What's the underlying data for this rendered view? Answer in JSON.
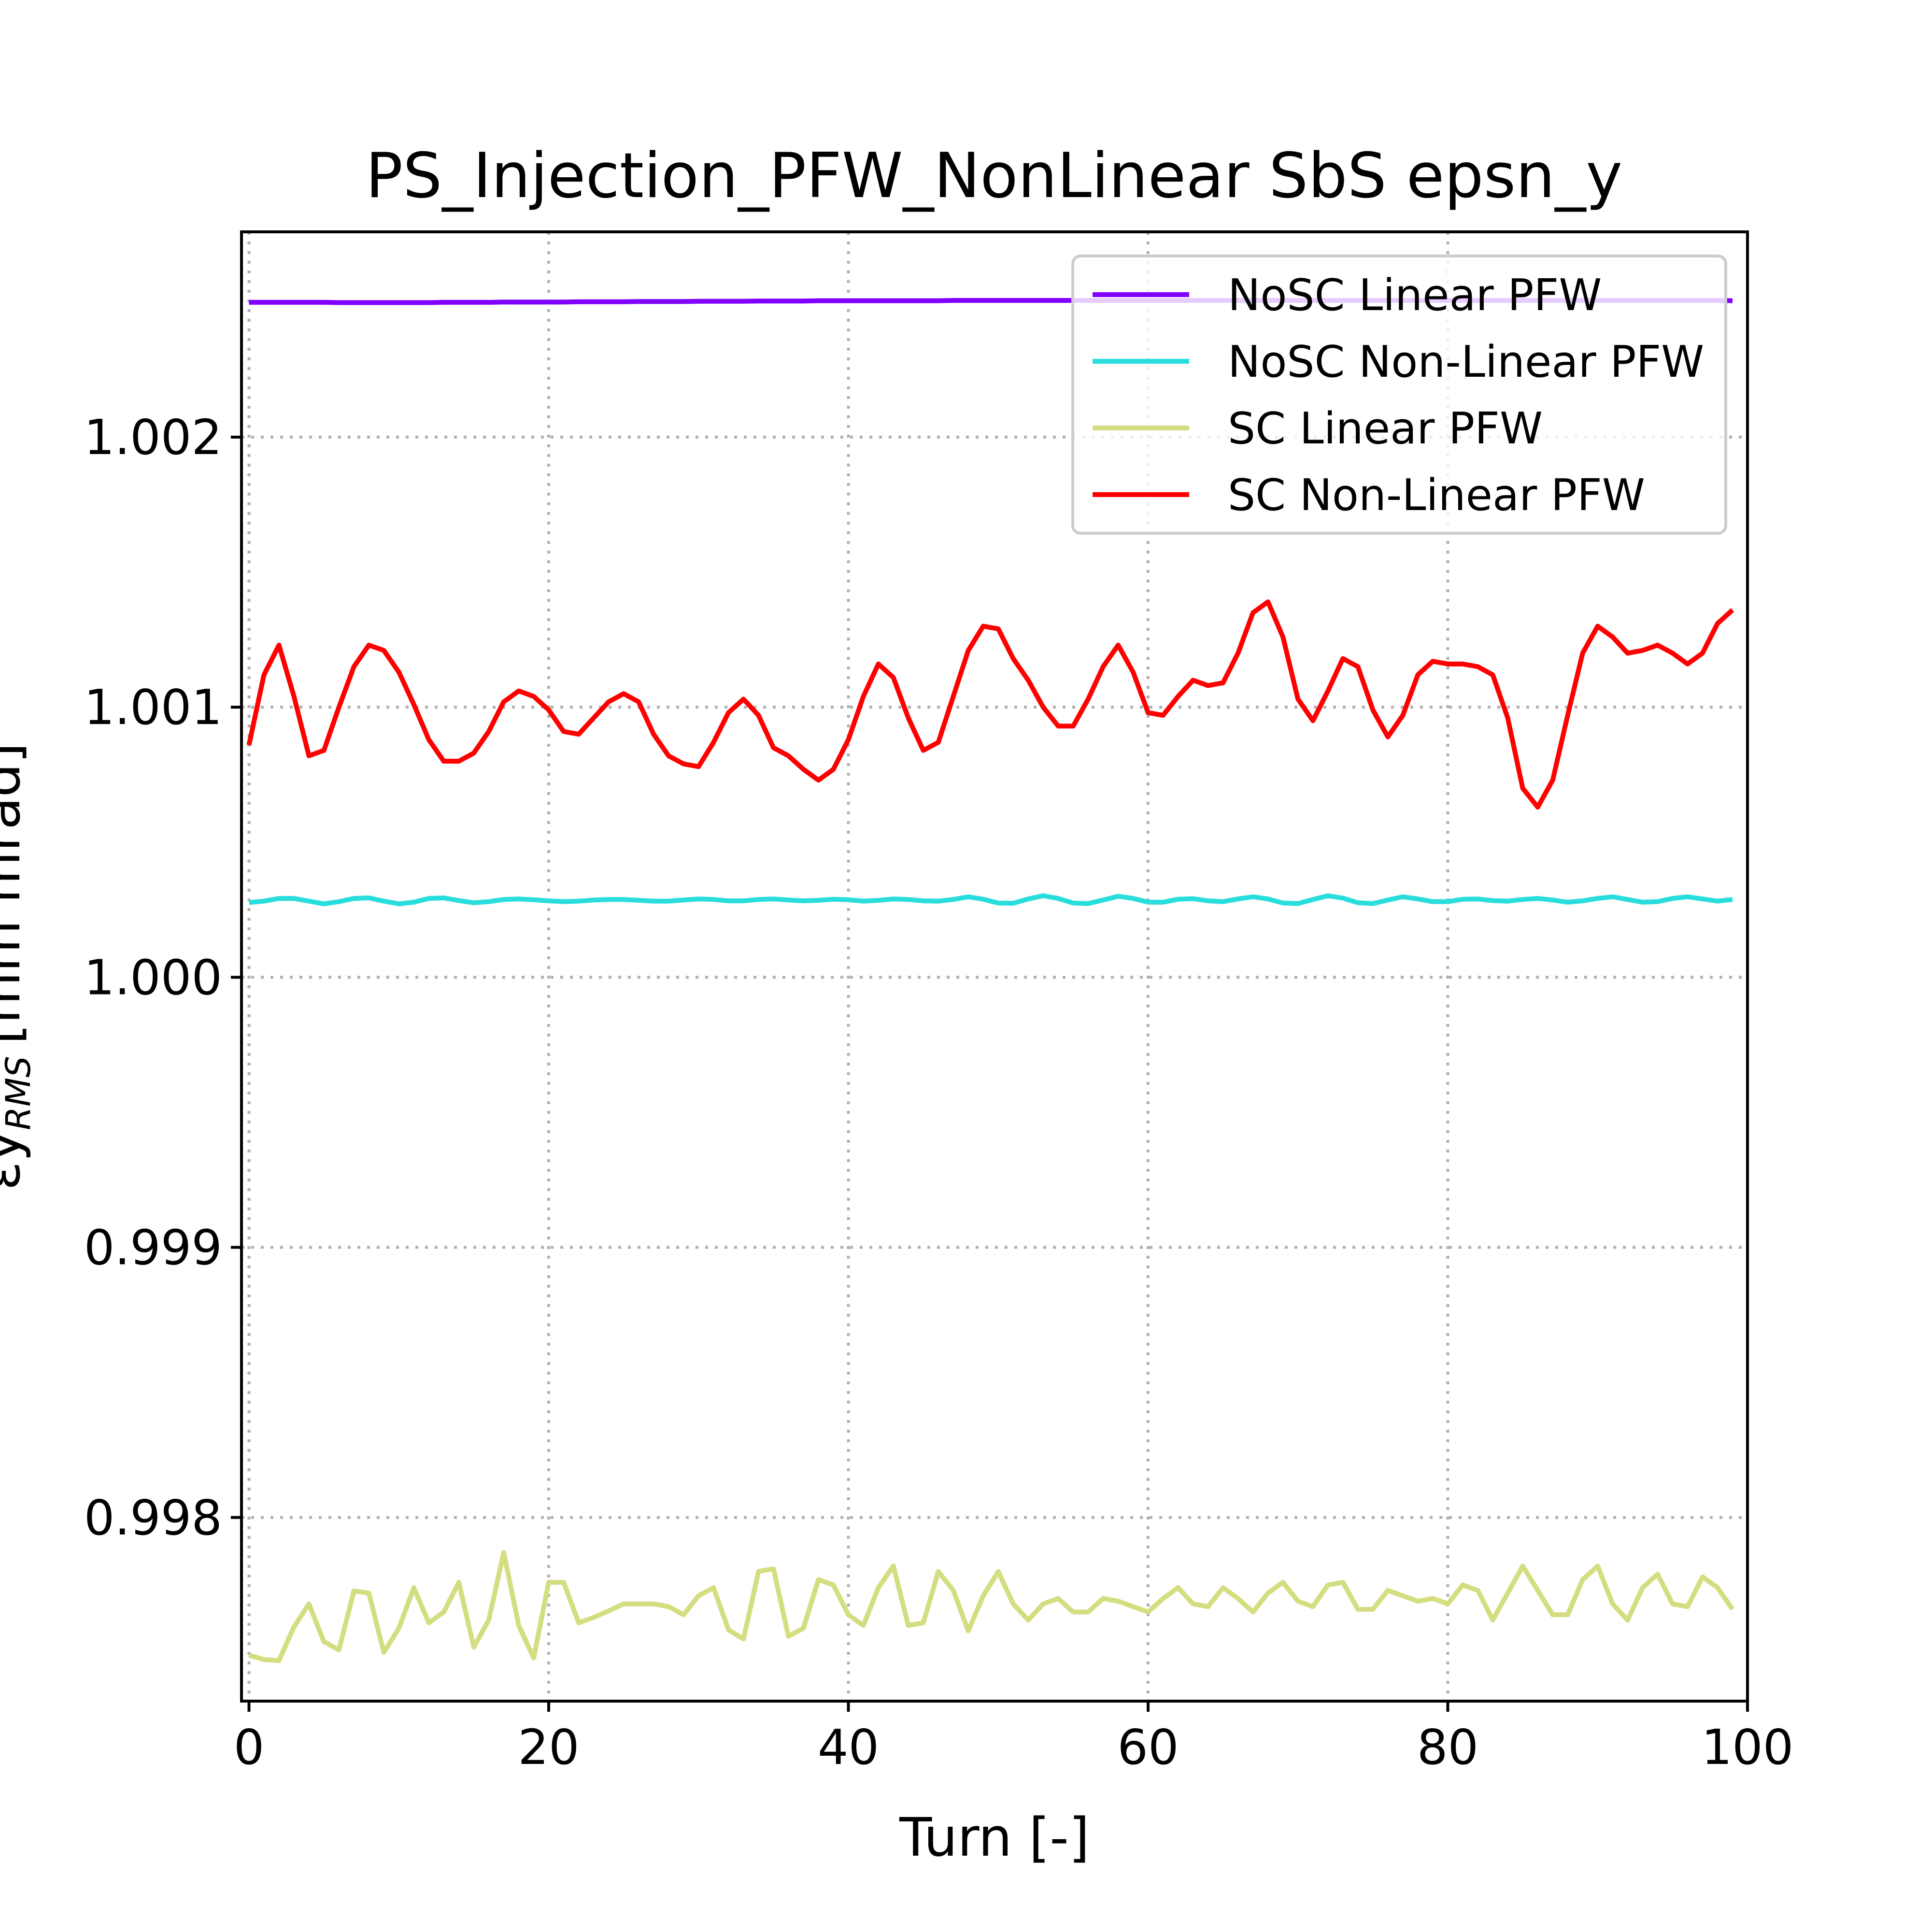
{
  "chart_data": {
    "type": "line",
    "title": "PS_Injection_PFW_NonLinear SbS epsn_y",
    "xlabel": "Turn [-]",
    "ylabel_main": "εy",
    "ylabel_sub": "RMS",
    "ylabel_units": "[mm mrad]",
    "xlim": [
      -0.5,
      100
    ],
    "ylim": [
      0.99732,
      1.00276
    ],
    "xticks": [
      0,
      20,
      40,
      60,
      80,
      100
    ],
    "xtick_labels": [
      "0",
      "20",
      "40",
      "60",
      "80",
      "100"
    ],
    "yticks": [
      0.998,
      0.999,
      1.0,
      1.001,
      1.002
    ],
    "ytick_labels": [
      "0.998",
      "0.999",
      "1.000",
      "1.001",
      "1.002"
    ],
    "grid": true,
    "legend_position": "top-right",
    "x": [
      0,
      1,
      2,
      3,
      4,
      5,
      6,
      7,
      8,
      9,
      10,
      11,
      12,
      13,
      14,
      15,
      16,
      17,
      18,
      19,
      20,
      21,
      22,
      23,
      24,
      25,
      26,
      27,
      28,
      29,
      30,
      31,
      32,
      33,
      34,
      35,
      36,
      37,
      38,
      39,
      40,
      41,
      42,
      43,
      44,
      45,
      46,
      47,
      48,
      49,
      50,
      51,
      52,
      53,
      54,
      55,
      56,
      57,
      58,
      59,
      60,
      61,
      62,
      63,
      64,
      65,
      66,
      67,
      68,
      69,
      70,
      71,
      72,
      73,
      74,
      75,
      76,
      77,
      78,
      79,
      80,
      81,
      82,
      83,
      84,
      85,
      86,
      87,
      88,
      89,
      90,
      91,
      92,
      93,
      94,
      95,
      96,
      97,
      98,
      99
    ],
    "series": [
      {
        "name": "NoSC Linear PFW",
        "color": "#8000ff",
        "values": [
          1.002499,
          1.002499,
          1.002499,
          1.002499,
          1.002499,
          1.002499,
          1.002498,
          1.002498,
          1.002498,
          1.002498,
          1.002498,
          1.002498,
          1.002498,
          1.002499,
          1.002499,
          1.002499,
          1.002499,
          1.0025,
          1.0025,
          1.0025,
          1.0025,
          1.0025,
          1.002501,
          1.002501,
          1.002501,
          1.002501,
          1.002502,
          1.002502,
          1.002502,
          1.002502,
          1.002503,
          1.002503,
          1.002503,
          1.002503,
          1.002504,
          1.002504,
          1.002504,
          1.002504,
          1.002505,
          1.002505,
          1.002505,
          1.002505,
          1.002505,
          1.002505,
          1.002505,
          1.002505,
          1.002505,
          1.002506,
          1.002506,
          1.002506,
          1.002506,
          1.002506,
          1.002506,
          1.002506,
          1.002506,
          1.002506,
          1.002506,
          1.002506,
          1.002506,
          1.002506,
          1.002506,
          1.002506,
          1.002506,
          1.002506,
          1.002506,
          1.002506,
          1.002506,
          1.002506,
          1.002506,
          1.002506,
          1.002506,
          1.002506,
          1.002506,
          1.002506,
          1.002506,
          1.002506,
          1.002506,
          1.002506,
          1.002506,
          1.002506,
          1.002506,
          1.002506,
          1.002506,
          1.002506,
          1.002506,
          1.002506,
          1.002506,
          1.002506,
          1.002506,
          1.002506,
          1.002506,
          1.002506,
          1.002506,
          1.002506,
          1.002506,
          1.002506,
          1.002506,
          1.002506,
          1.002506,
          1.002505
        ]
      },
      {
        "name": "NoSC Non-Linear PFW",
        "color": "#2adddd",
        "values": [
          1.000277,
          1.000282,
          1.000292,
          1.000292,
          1.000282,
          1.000272,
          1.00028,
          1.000292,
          1.000294,
          1.000282,
          1.000272,
          1.000278,
          1.000292,
          1.000294,
          1.000284,
          1.000276,
          1.00028,
          1.000288,
          1.00029,
          1.000287,
          1.000283,
          1.00028,
          1.000282,
          1.000286,
          1.000288,
          1.000288,
          1.000285,
          1.000282,
          1.000282,
          1.000286,
          1.00029,
          1.000288,
          1.000283,
          1.000283,
          1.000288,
          1.00029,
          1.000286,
          1.000283,
          1.000285,
          1.000289,
          1.000287,
          1.000282,
          1.000285,
          1.00029,
          1.000288,
          1.000283,
          1.000282,
          1.000288,
          1.000298,
          1.000289,
          1.000275,
          1.000274,
          1.00029,
          1.000302,
          1.000292,
          1.000275,
          1.000273,
          1.000286,
          1.0003,
          1.000292,
          1.000278,
          1.000278,
          1.000289,
          1.000291,
          1.000283,
          1.00028,
          1.00029,
          1.000298,
          1.00029,
          1.000275,
          1.000273,
          1.000288,
          1.000302,
          1.000293,
          1.000276,
          1.000273,
          1.000286,
          1.000298,
          1.00029,
          1.00028,
          1.00028,
          1.000289,
          1.00029,
          1.000284,
          1.000282,
          1.000288,
          1.000292,
          1.000286,
          1.000278,
          1.000283,
          1.000292,
          1.000298,
          1.000288,
          1.000278,
          1.00028,
          1.000292,
          1.000298,
          1.00029,
          1.000282,
          1.000288
        ]
      },
      {
        "name": "SC Linear PFW",
        "color": "#d4dd80",
        "values": [
          0.99749,
          0.997474,
          0.99747,
          0.997595,
          0.99768,
          0.99754,
          0.99751,
          0.997728,
          0.99772,
          0.9975,
          0.99759,
          0.99774,
          0.99761,
          0.99765,
          0.99776,
          0.99752,
          0.99762,
          0.99787,
          0.9976,
          0.99748,
          0.99776,
          0.99776,
          0.99761,
          0.99763,
          0.997654,
          0.99768,
          0.99768,
          0.99768,
          0.99767,
          0.99764,
          0.99771,
          0.99774,
          0.997584,
          0.99755,
          0.9978,
          0.99781,
          0.99756,
          0.99759,
          0.99777,
          0.99775,
          0.99764,
          0.9976,
          0.99774,
          0.99782,
          0.9976,
          0.99761,
          0.9978,
          0.99773,
          0.99758,
          0.99771,
          0.9978,
          0.99768,
          0.99762,
          0.99768,
          0.9977,
          0.99765,
          0.99765,
          0.9977,
          0.99769,
          0.99767,
          0.99765,
          0.9977,
          0.99774,
          0.99768,
          0.99767,
          0.99774,
          0.9977,
          0.99765,
          0.99772,
          0.99776,
          0.99769,
          0.99767,
          0.99775,
          0.99776,
          0.99766,
          0.99766,
          0.99773,
          0.99771,
          0.99769,
          0.9977,
          0.99768,
          0.99775,
          0.99773,
          0.99762,
          0.99772,
          0.99782,
          0.99773,
          0.99764,
          0.99764,
          0.99777,
          0.99782,
          0.99768,
          0.99762,
          0.99774,
          0.99779,
          0.99768,
          0.99767,
          0.99778,
          0.99774,
          0.99766
        ]
      },
      {
        "name": "SC Non-Linear PFW",
        "color": "#ff0000",
        "values": [
          1.00086,
          1.00112,
          1.00123,
          1.00104,
          1.00082,
          1.00084,
          1.001,
          1.00115,
          1.00123,
          1.00121,
          1.00113,
          1.00101,
          1.00088,
          1.0008,
          1.0008,
          1.00083,
          1.00091,
          1.00102,
          1.00106,
          1.00104,
          1.00099,
          1.00091,
          1.0009,
          1.00096,
          1.00102,
          1.00105,
          1.00102,
          1.0009,
          1.00082,
          1.00079,
          1.00078,
          1.00087,
          1.00098,
          1.00103,
          1.00097,
          1.00085,
          1.00082,
          1.00077,
          1.00073,
          1.00077,
          1.00088,
          1.00104,
          1.00116,
          1.00111,
          1.00096,
          1.00084,
          1.00087,
          1.00104,
          1.00121,
          1.0013,
          1.00129,
          1.00118,
          1.0011,
          1.001,
          1.00093,
          1.00093,
          1.00103,
          1.00115,
          1.00123,
          1.00113,
          1.00098,
          1.00097,
          1.00104,
          1.0011,
          1.00108,
          1.00109,
          1.0012,
          1.00135,
          1.00139,
          1.00126,
          1.00103,
          1.00095,
          1.00106,
          1.00118,
          1.00115,
          1.00099,
          1.00089,
          1.00097,
          1.00112,
          1.00117,
          1.00116,
          1.00116,
          1.00115,
          1.00112,
          1.00096,
          1.0007,
          1.00063,
          1.00073,
          1.00097,
          1.0012,
          1.0013,
          1.00126,
          1.0012,
          1.00121,
          1.00123,
          1.0012,
          1.00116,
          1.0012,
          1.00131,
          1.00136
        ]
      }
    ]
  }
}
